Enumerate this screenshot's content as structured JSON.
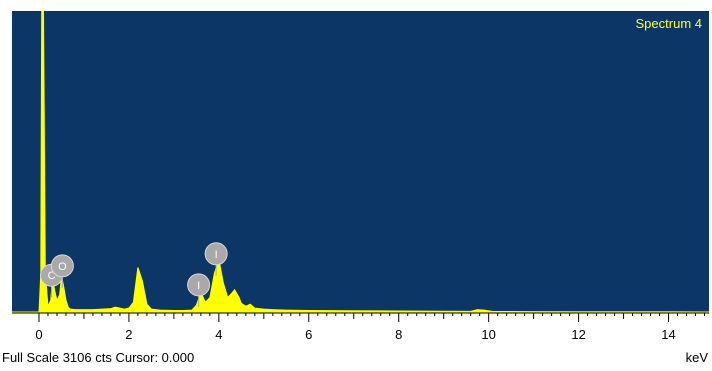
{
  "chart_data": {
    "type": "area",
    "title": "Spectrum 4",
    "xlabel": "keV",
    "ylabel": "",
    "xlim": [
      -0.6,
      14.9
    ],
    "ylim": [
      0,
      3106
    ],
    "x_ticks": [
      0,
      2,
      4,
      6,
      8,
      10,
      12,
      14
    ],
    "grid": false,
    "series": [
      {
        "x": [
          -0.6,
          0.0,
          0.04,
          0.06,
          0.1,
          0.14,
          0.2,
          0.26,
          0.3,
          0.35,
          0.4,
          0.46,
          0.5,
          0.55,
          0.6,
          0.65,
          0.7,
          0.8,
          1.0,
          1.2,
          1.4,
          1.6,
          1.7,
          1.8,
          1.9,
          2.0,
          2.1,
          2.2,
          2.3,
          2.4,
          2.5,
          2.7,
          3.0,
          3.2,
          3.4,
          3.5,
          3.6,
          3.7,
          3.8,
          3.9,
          4.0,
          4.1,
          4.2,
          4.3,
          4.35,
          4.45,
          4.5,
          4.6,
          4.7,
          4.8,
          5.0,
          5.2,
          5.5,
          6.0,
          7.0,
          8.0,
          9.0,
          9.6,
          9.75,
          9.9,
          10.1,
          11.0,
          12.0,
          13.0,
          14.0,
          14.9
        ],
        "y": [
          0,
          0,
          400,
          3106,
          3106,
          400,
          60,
          120,
          350,
          220,
          120,
          180,
          380,
          260,
          120,
          50,
          30,
          25,
          25,
          25,
          30,
          35,
          50,
          40,
          30,
          40,
          100,
          460,
          320,
          80,
          30,
          20,
          15,
          15,
          20,
          70,
          200,
          100,
          150,
          400,
          540,
          300,
          150,
          200,
          230,
          150,
          90,
          60,
          80,
          40,
          30,
          25,
          20,
          15,
          12,
          10,
          8,
          6,
          25,
          20,
          5,
          4,
          3,
          2,
          2,
          0
        ]
      }
    ],
    "annotations": [
      {
        "label": "C",
        "x": 0.28
      },
      {
        "label": "O",
        "x": 0.52
      },
      {
        "label": "I",
        "x": 3.94
      },
      {
        "label": "I",
        "x": 3.55
      }
    ],
    "status": "Full Scale 3106 cts Cursor: 0.000",
    "colors": {
      "background": "#0c3666",
      "trace": "#ffff00",
      "marker": "#a9a9a9"
    }
  }
}
